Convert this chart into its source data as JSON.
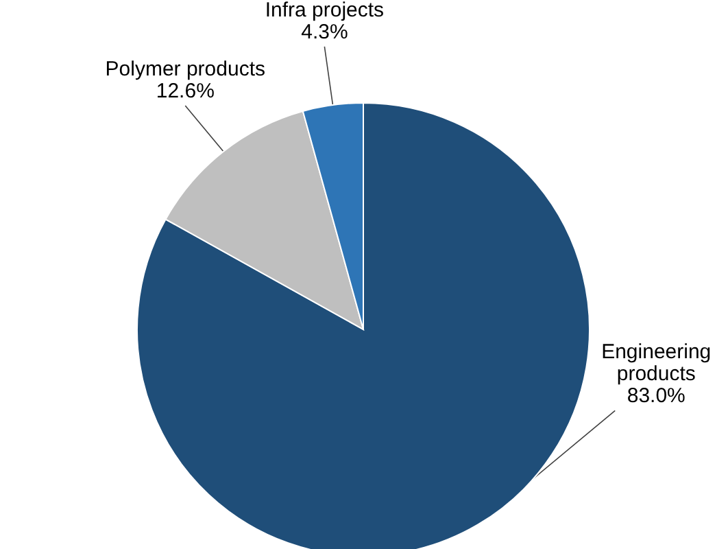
{
  "chart_data": {
    "type": "pie",
    "categories": [
      "Engineering\nproducts",
      "Polymer products",
      "Infra projects"
    ],
    "values": [
      83.0,
      12.6,
      4.3
    ],
    "colors": [
      "#1f4e79",
      "#bfbfbf",
      "#2e75b6"
    ],
    "value_labels": [
      "83.0%",
      "12.6%",
      "4.3%"
    ]
  }
}
